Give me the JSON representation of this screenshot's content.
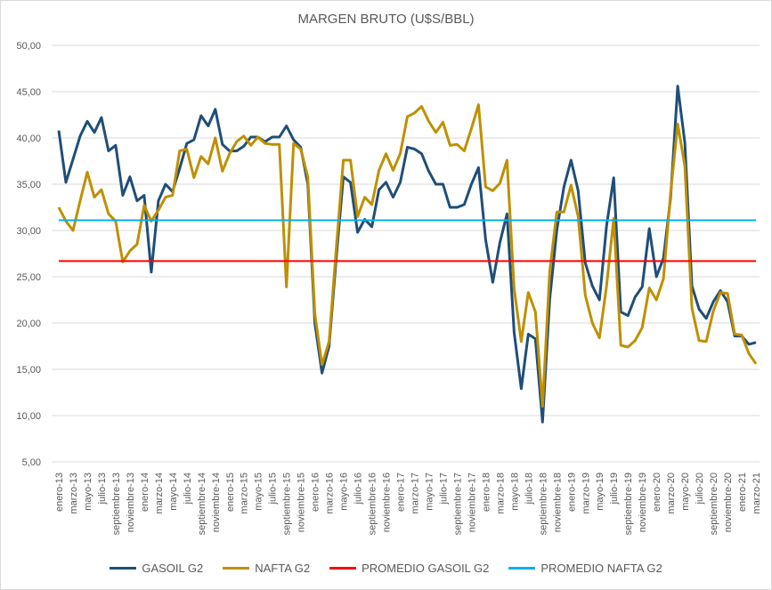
{
  "chart_data": {
    "type": "line",
    "title": "MARGEN BRUTO (U$S/BBL)",
    "xlabel": "",
    "ylabel": "",
    "ylim": [
      5,
      50
    ],
    "y_ticks": [
      "5,00",
      "10,00",
      "15,00",
      "20,00",
      "25,00",
      "30,00",
      "35,00",
      "40,00",
      "45,00",
      "50,00"
    ],
    "grid": true,
    "legend_position": "bottom",
    "x_start": "enero-13",
    "x_step": "month",
    "x_tick_labels": [
      "enero-13",
      "marzo-13",
      "mayo-13",
      "julio-13",
      "septiembre-13",
      "noviembre-13",
      "enero-14",
      "marzo-14",
      "mayo-14",
      "julio-14",
      "septiembre-14",
      "noviembre-14",
      "enero-15",
      "marzo-15",
      "mayo-15",
      "julio-15",
      "septiembre-15",
      "noviembre-15",
      "enero-16",
      "marzo-16",
      "mayo-16",
      "julio-16",
      "septiembre-16",
      "noviembre-16",
      "enero-17",
      "marzo-17",
      "mayo-17",
      "julio-17",
      "septiembre-17",
      "noviembre-17",
      "enero-18",
      "marzo-18",
      "mayo-18",
      "julio-18",
      "septiembre-18",
      "noviembre-18",
      "enero-19",
      "marzo-19",
      "mayo-19",
      "julio-19",
      "septiembre-19",
      "noviembre-19",
      "enero-20",
      "marzo-20",
      "mayo-20",
      "julio-20",
      "septiembre-20",
      "noviembre-20",
      "enero-21",
      "marzo-21"
    ],
    "series": [
      {
        "name": "GASOIL G2",
        "color": "#1f4e79",
        "values": [
          40.8,
          35.2,
          37.7,
          40.2,
          41.8,
          40.6,
          42.2,
          38.6,
          39.2,
          33.8,
          35.8,
          33.2,
          33.8,
          25.5,
          33.2,
          35.0,
          34.2,
          36.7,
          39.4,
          39.8,
          42.4,
          41.3,
          43.1,
          39.3,
          38.6,
          38.6,
          39.1,
          40.1,
          40.1,
          39.6,
          40.1,
          40.1,
          41.3,
          39.8,
          39.0,
          35.0,
          20.0,
          14.6,
          17.5,
          27.0,
          35.8,
          35.2,
          29.8,
          31.2,
          30.4,
          34.4,
          35.2,
          33.6,
          35.2,
          39.0,
          38.8,
          38.3,
          36.4,
          35.0,
          35.0,
          32.5,
          32.5,
          32.8,
          35.0,
          36.8,
          29.0,
          24.4,
          28.7,
          31.8,
          19.0,
          12.9,
          18.8,
          18.3,
          9.3,
          22.5,
          30.0,
          34.7,
          37.6,
          34.3,
          26.5,
          24.0,
          22.5,
          30.5,
          35.7,
          21.2,
          20.8,
          22.8,
          23.9,
          30.2,
          25.0,
          27.0,
          33.5,
          45.6,
          39.5,
          24.0,
          21.5,
          20.5,
          22.3,
          23.5,
          22.3,
          18.6,
          18.6,
          17.7,
          17.9
        ]
      },
      {
        "name": "NAFTA G2",
        "color": "#bf9000",
        "values": [
          32.5,
          31.0,
          30.0,
          33.2,
          36.3,
          33.6,
          34.4,
          31.8,
          31.0,
          26.6,
          27.8,
          28.5,
          32.7,
          31.0,
          32.2,
          33.6,
          33.8,
          38.6,
          38.8,
          35.7,
          38.0,
          37.2,
          40.0,
          36.4,
          38.3,
          39.6,
          40.2,
          39.2,
          40.1,
          39.4,
          39.3,
          39.3,
          23.9,
          39.4,
          38.8,
          35.8,
          21.0,
          15.5,
          18.0,
          28.0,
          37.6,
          37.6,
          31.5,
          33.6,
          32.8,
          36.5,
          38.3,
          36.5,
          38.3,
          42.3,
          42.7,
          43.4,
          41.8,
          40.6,
          41.7,
          39.2,
          39.3,
          38.6,
          41.0,
          43.6,
          34.7,
          34.3,
          35.1,
          37.6,
          23.7,
          18.0,
          23.3,
          21.2,
          11.0,
          25.5,
          32.0,
          32.0,
          34.9,
          31.5,
          23.0,
          20.0,
          18.4,
          24.0,
          31.3,
          17.6,
          17.4,
          18.1,
          19.5,
          23.8,
          22.5,
          24.8,
          34.0,
          41.5,
          37.0,
          21.6,
          18.1,
          18.0,
          21.3,
          23.3,
          23.2,
          18.8,
          18.7,
          16.7,
          15.6
        ]
      },
      {
        "name": "PROMEDIO GASOIL G2",
        "color": "#ff0000",
        "constant": 26.7
      },
      {
        "name": "PROMEDIO NAFTA G2",
        "color": "#00b0f0",
        "constant": 31.1
      }
    ]
  }
}
